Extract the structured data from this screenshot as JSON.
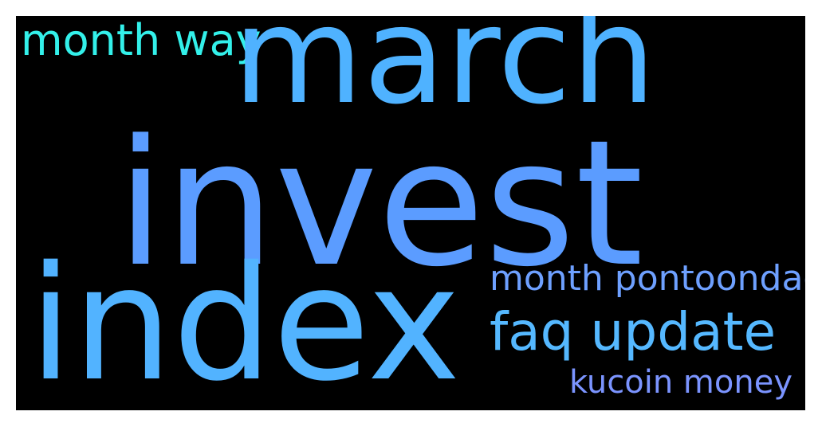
{
  "words": [
    {
      "text": "month way",
      "color": "#33f0ea"
    },
    {
      "text": "march",
      "color": "#4fb2ff"
    },
    {
      "text": "invest",
      "color": "#5b9cff"
    },
    {
      "text": "month pontoondao",
      "color": "#6ea0ff"
    },
    {
      "text": "index",
      "color": "#52b3ff"
    },
    {
      "text": "faq update",
      "color": "#55b8ff"
    },
    {
      "text": "kucoin money",
      "color": "#7b94ff"
    }
  ],
  "background": "#000000"
}
